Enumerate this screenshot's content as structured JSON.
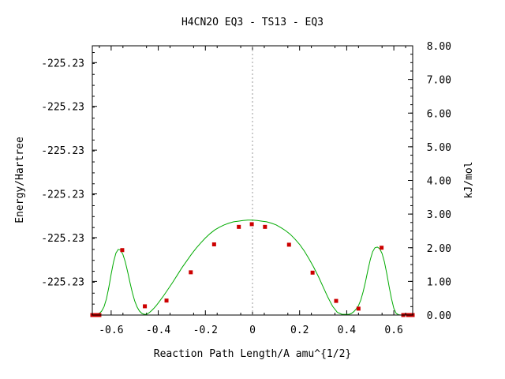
{
  "chart_data": {
    "type": "line",
    "title": "H4CN2O    EQ3 - TS13 - EQ3",
    "xlabel": "Reaction Path Length/A amu^{1/2}",
    "ylabel": "Energy/Hartree",
    "y2label": "kJ/mol",
    "xlim": [
      -0.68,
      0.68
    ],
    "ylim": [
      0,
      8
    ],
    "x_ticks": [
      -0.6,
      -0.4,
      -0.2,
      0,
      0.2,
      0.4,
      0.6
    ],
    "x_tick_labels": [
      "-0.6",
      "-0.4",
      "-0.2",
      "0",
      "0.2",
      "0.4",
      "0.6"
    ],
    "y_left_ticks": [
      1,
      2.3,
      3.6,
      4.9,
      6.2,
      7.5
    ],
    "y_left_tick_labels": [
      "-225.23",
      "-225.23",
      "-225.23",
      "-225.23",
      "-225.23",
      "-225.23"
    ],
    "y_right_ticks": [
      0,
      1,
      2,
      3,
      4,
      5,
      6,
      7,
      8
    ],
    "y_right_tick_labels": [
      "0.00",
      "1.00",
      "2.00",
      "3.00",
      "4.00",
      "5.00",
      "6.00",
      "7.00",
      "8.00"
    ],
    "grid": false,
    "center_line_x": 0,
    "series": [
      {
        "color": "#00aa00",
        "x": [
          -0.68,
          -0.67,
          -0.66,
          -0.65,
          -0.64,
          -0.63,
          -0.62,
          -0.61,
          -0.6,
          -0.59,
          -0.58,
          -0.57,
          -0.56,
          -0.55,
          -0.54,
          -0.53,
          -0.52,
          -0.51,
          -0.5,
          -0.49,
          -0.48,
          -0.47,
          -0.46,
          -0.45,
          -0.44,
          -0.43,
          -0.42,
          -0.41,
          -0.4,
          -0.38,
          -0.36,
          -0.34,
          -0.32,
          -0.3,
          -0.28,
          -0.26,
          -0.24,
          -0.22,
          -0.2,
          -0.18,
          -0.16,
          -0.14,
          -0.12,
          -0.1,
          -0.08,
          -0.06,
          -0.04,
          -0.02,
          0,
          0.02,
          0.04,
          0.06,
          0.08,
          0.1,
          0.12,
          0.14,
          0.16,
          0.18,
          0.2,
          0.22,
          0.24,
          0.26,
          0.28,
          0.3,
          0.32,
          0.34,
          0.36,
          0.38,
          0.4,
          0.41,
          0.42,
          0.43,
          0.44,
          0.45,
          0.46,
          0.47,
          0.48,
          0.49,
          0.5,
          0.51,
          0.52,
          0.53,
          0.54,
          0.55,
          0.56,
          0.57,
          0.58,
          0.59,
          0.6,
          0.61,
          0.62,
          0.63,
          0.64,
          0.65,
          0.66,
          0.67,
          0.68
        ],
        "y": [
          0.0,
          0.0,
          0.02,
          0.05,
          0.12,
          0.25,
          0.48,
          0.82,
          1.22,
          1.58,
          1.84,
          1.95,
          1.93,
          1.8,
          1.58,
          1.28,
          0.96,
          0.66,
          0.42,
          0.24,
          0.12,
          0.05,
          0.02,
          0.02,
          0.06,
          0.12,
          0.19,
          0.27,
          0.36,
          0.55,
          0.75,
          0.96,
          1.18,
          1.4,
          1.6,
          1.8,
          1.98,
          2.14,
          2.29,
          2.42,
          2.53,
          2.61,
          2.68,
          2.73,
          2.77,
          2.79,
          2.81,
          2.82,
          2.82,
          2.81,
          2.79,
          2.77,
          2.73,
          2.68,
          2.6,
          2.51,
          2.4,
          2.26,
          2.1,
          1.9,
          1.67,
          1.42,
          1.14,
          0.83,
          0.53,
          0.26,
          0.08,
          0.02,
          0.02,
          0.02,
          0.05,
          0.1,
          0.18,
          0.28,
          0.45,
          0.7,
          1.0,
          1.34,
          1.65,
          1.88,
          2.0,
          2.02,
          1.97,
          1.83,
          1.58,
          1.23,
          0.85,
          0.49,
          0.2,
          0.05,
          0.01,
          0.0,
          0.0,
          0.0,
          0.0,
          0.0,
          0.0
        ]
      },
      {
        "color": "#cc0000",
        "marker": "square",
        "x": [
          -0.68,
          -0.67,
          -0.66,
          -0.65,
          -0.553,
          -0.457,
          -0.365,
          -0.262,
          -0.163,
          -0.058,
          -0.003,
          0.053,
          0.155,
          0.255,
          0.355,
          0.45,
          0.548,
          0.64,
          0.66,
          0.67,
          0.68
        ],
        "y": [
          0.0,
          0.0,
          0.0,
          0.0,
          1.93,
          0.26,
          0.43,
          1.27,
          2.1,
          2.62,
          2.7,
          2.62,
          2.09,
          1.26,
          0.42,
          0.19,
          2.0,
          0.0,
          0.0,
          0.0,
          0.0
        ]
      }
    ]
  }
}
